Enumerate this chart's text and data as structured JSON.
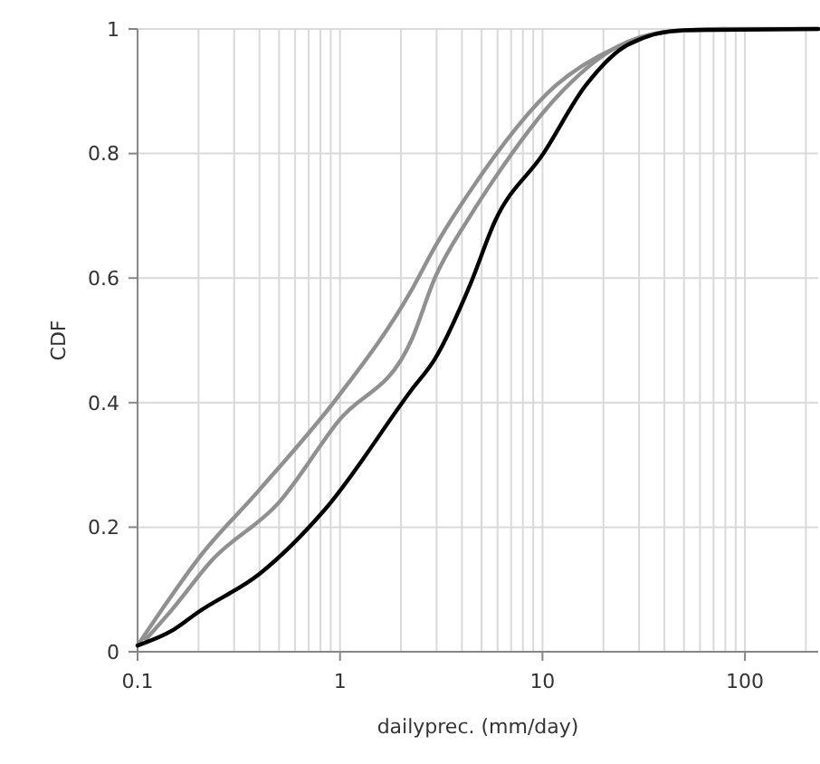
{
  "chart_data": {
    "type": "line",
    "xlabel": "dailyprec. (mm/day)",
    "ylabel": "CDF",
    "log": "x",
    "grid": true,
    "xlim": [
      0.1,
      230
    ],
    "ylim": [
      0,
      1
    ],
    "xticks": [
      0.1,
      {
        "value": 0.2,
        "label": null
      },
      {
        "value": 0.3,
        "label": null
      },
      {
        "value": 0.4,
        "label": null
      },
      {
        "value": 0.5,
        "label": null
      },
      {
        "value": 0.6,
        "label": null
      },
      {
        "value": 0.7,
        "label": null
      },
      {
        "value": 0.8,
        "label": null
      },
      {
        "value": 0.9,
        "label": null
      },
      1,
      {
        "value": 2,
        "label": null
      },
      {
        "value": 3,
        "label": null
      },
      {
        "value": 4,
        "label": null
      },
      {
        "value": 5,
        "label": null
      },
      {
        "value": 6,
        "label": null
      },
      {
        "value": 7,
        "label": null
      },
      {
        "value": 8,
        "label": null
      },
      {
        "value": 9,
        "label": null
      },
      10,
      {
        "value": 20,
        "label": null
      },
      {
        "value": 30,
        "label": null
      },
      {
        "value": 40,
        "label": null
      },
      {
        "value": 50,
        "label": null
      },
      {
        "value": 60,
        "label": null
      },
      {
        "value": 70,
        "label": null
      },
      {
        "value": 80,
        "label": null
      },
      {
        "value": 90,
        "label": null
      },
      100,
      {
        "value": 200,
        "label": null
      }
    ],
    "yticks": [
      0,
      0.2,
      0.4,
      0.6,
      0.8,
      1
    ],
    "series": [
      {
        "color": "#909090",
        "x": [
          0.1,
          0.14,
          0.2,
          0.4,
          0.98,
          2.25,
          2.94,
          4.4,
          11.7,
          23,
          40,
          80,
          230
        ],
        "values": [
          0.01,
          0.08,
          0.15,
          0.26,
          0.41,
          0.58,
          0.65,
          0.74,
          0.91,
          0.97,
          0.995,
          1,
          1
        ]
      },
      {
        "color": "#909090",
        "x": [
          0.11,
          0.15,
          0.23,
          0.5,
          0.98,
          2.25,
          2.94,
          4.4,
          5.8,
          11.7,
          23,
          40,
          80
        ],
        "values": [
          0.02,
          0.07,
          0.145,
          0.24,
          0.37,
          0.5,
          0.6,
          0.7,
          0.76,
          0.89,
          0.97,
          0.995,
          1
        ]
      },
      {
        "color": "#000000",
        "x": [
          0.1,
          0.15,
          0.2,
          0.4,
          0.85,
          2.25,
          2.94,
          4.4,
          5.8,
          10.1,
          16.4,
          26.5,
          50,
          230
        ],
        "values": [
          0.01,
          0.035,
          0.064,
          0.125,
          0.23,
          0.42,
          0.47,
          0.59,
          0.69,
          0.8,
          0.91,
          0.975,
          0.998,
          1
        ]
      }
    ]
  }
}
